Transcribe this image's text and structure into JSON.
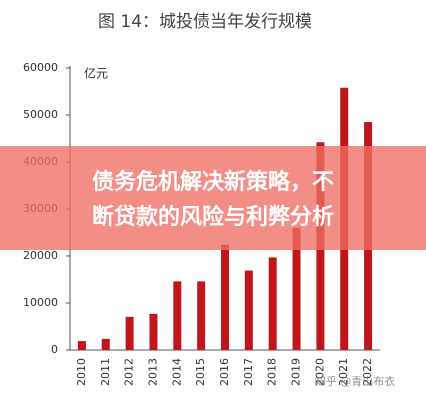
{
  "chart_data": {
    "type": "bar",
    "title": "图 14：城投债当年发行规模",
    "y_unit": "亿元",
    "categories": [
      "2010",
      "2011",
      "2012",
      "2013",
      "2014",
      "2015",
      "2016",
      "2017",
      "2018",
      "2019",
      "2020",
      "2021",
      "2022"
    ],
    "values": [
      1900,
      2350,
      7050,
      7700,
      14600,
      14600,
      22400,
      16900,
      19700,
      26000,
      44200,
      55800,
      48500
    ],
    "color": "#c0161b",
    "ylim": [
      0,
      60000
    ],
    "yticks": [
      0,
      10000,
      20000,
      30000,
      40000,
      50000,
      60000
    ],
    "grid": false
  },
  "overlay": {
    "lines": [
      "债务危机解决新策略，不",
      "断贷款的风险与利弊分析"
    ]
  },
  "watermark": "知乎 @青山布衣"
}
